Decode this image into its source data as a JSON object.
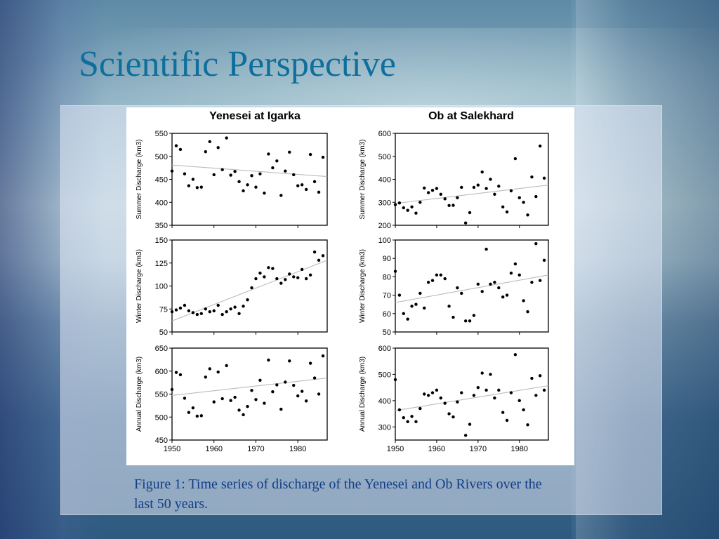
{
  "slide": {
    "title": "Scientific Perspective",
    "caption": "Figure 1:  Time series of discharge of the Yenesei and Ob Rivers over the last 50 years."
  },
  "colors": {
    "title": "#0e6f9c",
    "caption": "#123f88",
    "points": "#000000",
    "trend": "#bbbbbb"
  },
  "chart_data": [
    {
      "type": "scatter",
      "title": "Yenesei at Igarka",
      "ylabel": "Summer Discharge (km3)",
      "xlabel": "",
      "xlim": [
        1950,
        1987
      ],
      "ylim": [
        350,
        550
      ],
      "xticks": [
        1950,
        1960,
        1970,
        1980
      ],
      "yticks": [
        350,
        400,
        450,
        500,
        550
      ],
      "x": [
        1950,
        1951,
        1952,
        1953,
        1954,
        1955,
        1956,
        1957,
        1958,
        1959,
        1960,
        1961,
        1962,
        1963,
        1964,
        1965,
        1966,
        1967,
        1968,
        1969,
        1970,
        1971,
        1972,
        1973,
        1974,
        1975,
        1976,
        1977,
        1978,
        1979,
        1980,
        1981,
        1982,
        1983,
        1984,
        1985,
        1986
      ],
      "y": [
        468,
        523,
        515,
        462,
        436,
        450,
        432,
        433,
        510,
        532,
        460,
        519,
        471,
        540,
        459,
        467,
        445,
        425,
        438,
        458,
        433,
        462,
        420,
        505,
        475,
        490,
        415,
        468,
        509,
        460,
        436,
        438,
        428,
        504,
        445,
        422,
        498
      ],
      "trend": [
        481,
        456
      ]
    },
    {
      "type": "scatter",
      "title": "Ob at Salekhard",
      "ylabel": "Summer Discharge (km3)",
      "xlabel": "",
      "xlim": [
        1950,
        1987
      ],
      "ylim": [
        200,
        600
      ],
      "xticks": [
        1950,
        1960,
        1970,
        1980
      ],
      "yticks": [
        200,
        300,
        400,
        500,
        600
      ],
      "x": [
        1950,
        1951,
        1952,
        1953,
        1954,
        1955,
        1956,
        1957,
        1958,
        1959,
        1960,
        1961,
        1962,
        1963,
        1964,
        1965,
        1966,
        1967,
        1968,
        1969,
        1970,
        1971,
        1972,
        1973,
        1974,
        1975,
        1976,
        1977,
        1978,
        1979,
        1980,
        1981,
        1982,
        1983,
        1984,
        1985,
        1986
      ],
      "y": [
        290,
        297,
        276,
        265,
        280,
        253,
        300,
        362,
        342,
        352,
        360,
        335,
        315,
        286,
        287,
        320,
        365,
        210,
        255,
        365,
        375,
        432,
        360,
        400,
        335,
        370,
        280,
        258,
        350,
        490,
        320,
        300,
        245,
        410,
        325,
        545,
        405
      ],
      "trend": [
        295,
        375
      ]
    },
    {
      "type": "scatter",
      "title": "",
      "ylabel": "Winter Discharge (km3)",
      "xlabel": "",
      "xlim": [
        1950,
        1987
      ],
      "ylim": [
        50,
        150
      ],
      "xticks": [
        1950,
        1960,
        1970,
        1980
      ],
      "yticks": [
        50,
        75,
        100,
        125,
        150
      ],
      "x": [
        1950,
        1951,
        1952,
        1953,
        1954,
        1955,
        1956,
        1957,
        1958,
        1959,
        1960,
        1961,
        1962,
        1963,
        1964,
        1965,
        1966,
        1967,
        1968,
        1969,
        1970,
        1971,
        1972,
        1973,
        1974,
        1975,
        1976,
        1977,
        1978,
        1979,
        1980,
        1981,
        1982,
        1983,
        1984,
        1985,
        1986
      ],
      "y": [
        72,
        74,
        76,
        79,
        73,
        71,
        69,
        70,
        75,
        72,
        73,
        79,
        69,
        72,
        75,
        77,
        70,
        78,
        85,
        98,
        108,
        114,
        110,
        120,
        119,
        108,
        103,
        107,
        113,
        110,
        109,
        118,
        108,
        112,
        137,
        128,
        133
      ],
      "trend": [
        62,
        128
      ]
    },
    {
      "type": "scatter",
      "title": "",
      "ylabel": "Winter Discharge (km3)",
      "xlabel": "",
      "xlim": [
        1950,
        1987
      ],
      "ylim": [
        50,
        100
      ],
      "xticks": [
        1950,
        1960,
        1970,
        1980
      ],
      "yticks": [
        50,
        60,
        70,
        80,
        90,
        100
      ],
      "x": [
        1950,
        1951,
        1952,
        1953,
        1954,
        1955,
        1956,
        1957,
        1958,
        1959,
        1960,
        1961,
        1962,
        1963,
        1964,
        1965,
        1966,
        1967,
        1968,
        1969,
        1970,
        1971,
        1972,
        1973,
        1974,
        1975,
        1976,
        1977,
        1978,
        1979,
        1980,
        1981,
        1982,
        1983,
        1984,
        1985,
        1986
      ],
      "y": [
        83,
        70,
        60,
        57,
        64,
        65,
        71,
        63,
        77,
        78,
        81,
        81,
        79,
        64,
        58,
        74,
        71,
        56,
        56,
        59,
        76,
        72,
        95,
        76,
        77,
        74,
        69,
        70,
        82,
        87,
        81,
        67,
        61,
        77,
        98,
        78,
        89
      ],
      "trend": [
        66,
        81
      ]
    },
    {
      "type": "scatter",
      "title": "",
      "ylabel": "Annual Discharge (km3)",
      "xlabel": "",
      "xlim": [
        1950,
        1987
      ],
      "ylim": [
        450,
        650
      ],
      "xticks": [
        1950,
        1960,
        1970,
        1980
      ],
      "yticks": [
        450,
        500,
        550,
        600,
        650
      ],
      "x": [
        1950,
        1951,
        1952,
        1953,
        1954,
        1955,
        1956,
        1957,
        1958,
        1959,
        1960,
        1961,
        1962,
        1963,
        1964,
        1965,
        1966,
        1967,
        1968,
        1969,
        1970,
        1971,
        1972,
        1973,
        1974,
        1975,
        1976,
        1977,
        1978,
        1979,
        1980,
        1981,
        1982,
        1983,
        1984,
        1985,
        1986
      ],
      "y": [
        560,
        597,
        592,
        541,
        510,
        520,
        502,
        503,
        587,
        605,
        533,
        598,
        540,
        612,
        536,
        543,
        515,
        505,
        523,
        558,
        538,
        580,
        530,
        624,
        555,
        570,
        517,
        576,
        622,
        569,
        546,
        556,
        535,
        617,
        585,
        550,
        633
      ],
      "trend": [
        547,
        585
      ]
    },
    {
      "type": "scatter",
      "title": "",
      "ylabel": "Annual Discharge (km3)",
      "xlabel": "",
      "xlim": [
        1950,
        1987
      ],
      "ylim": [
        250,
        600
      ],
      "xticks": [
        1950,
        1960,
        1970,
        1980
      ],
      "yticks": [
        300,
        400,
        500,
        600
      ],
      "x": [
        1950,
        1951,
        1952,
        1953,
        1954,
        1955,
        1956,
        1957,
        1958,
        1959,
        1960,
        1961,
        1962,
        1963,
        1964,
        1965,
        1966,
        1967,
        1968,
        1969,
        1970,
        1971,
        1972,
        1973,
        1974,
        1975,
        1976,
        1977,
        1978,
        1979,
        1980,
        1981,
        1982,
        1983,
        1984,
        1985,
        1986
      ],
      "y": [
        480,
        365,
        335,
        320,
        340,
        320,
        370,
        425,
        420,
        430,
        440,
        410,
        390,
        350,
        338,
        395,
        430,
        268,
        310,
        420,
        450,
        505,
        440,
        500,
        410,
        440,
        355,
        325,
        430,
        575,
        400,
        365,
        308,
        485,
        420,
        495,
        440
      ],
      "trend": [
        362,
        457
      ]
    }
  ]
}
